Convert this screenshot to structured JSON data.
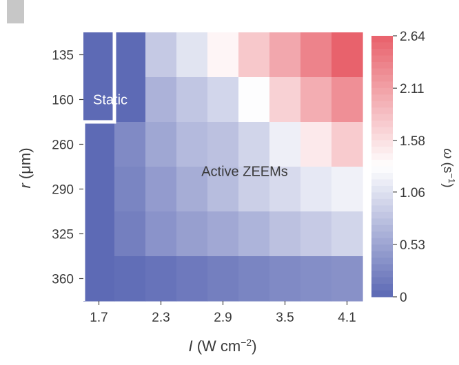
{
  "chart_data": {
    "type": "heatmap",
    "x": {
      "label_symbol": "I",
      "label_units": " (W cm",
      "label_exp": "−2",
      "label_close": ")",
      "tick_labels": [
        "1.7",
        "2.3",
        "2.9",
        "3.5",
        "4.1"
      ],
      "tick_positions": [
        0,
        2,
        4,
        6,
        8
      ],
      "columns": 9
    },
    "y": {
      "label_symbol": "r",
      "label_units": " (μm)",
      "tick_labels": [
        "135",
        "160",
        "260",
        "290",
        "325",
        "360"
      ],
      "rows": 6
    },
    "colorbar": {
      "label_symbol": "ω",
      "label_units": " (s",
      "label_exp": "−1",
      "label_close": ")",
      "range": [
        0,
        2.64
      ],
      "tick_labels": [
        "2.64",
        "2.11",
        "1.58",
        "1.06",
        "0.53",
        "0"
      ],
      "tick_values": [
        2.64,
        2.11,
        1.58,
        1.06,
        0.53,
        0
      ],
      "color_low": "#5b68b4",
      "color_mid": "#ffffff",
      "color_high": "#e8606a"
    },
    "rows": [
      {
        "r": "135",
        "values": [
          0.02,
          0.02,
          0.85,
          1.08,
          1.4,
          1.78,
          2.05,
          2.35,
          2.62
        ]
      },
      {
        "r": "160",
        "values": [
          0.02,
          0.02,
          0.65,
          0.82,
          0.96,
          1.3,
          1.7,
          2.0,
          2.25
        ]
      },
      {
        "r": "260",
        "values": [
          0.02,
          0.3,
          0.55,
          0.72,
          0.78,
          0.95,
          1.18,
          1.5,
          1.75
        ]
      },
      {
        "r": "290",
        "values": [
          0.02,
          0.25,
          0.45,
          0.6,
          0.74,
          0.9,
          1.0,
          1.12,
          1.2
        ]
      },
      {
        "r": "325",
        "values": [
          0.02,
          0.2,
          0.38,
          0.48,
          0.56,
          0.66,
          0.78,
          0.86,
          0.95
        ]
      },
      {
        "r": "360",
        "values": [
          0.02,
          0.05,
          0.1,
          0.15,
          0.2,
          0.25,
          0.3,
          0.33,
          0.36
        ]
      }
    ],
    "annotations": [
      {
        "text": "Static"
      },
      {
        "text": "Active ZEEMs"
      }
    ],
    "boundary_path": [
      [
        0,
        0
      ],
      [
        1,
        0
      ],
      [
        1,
        2
      ],
      [
        0,
        2
      ],
      [
        0,
        6
      ]
    ]
  }
}
